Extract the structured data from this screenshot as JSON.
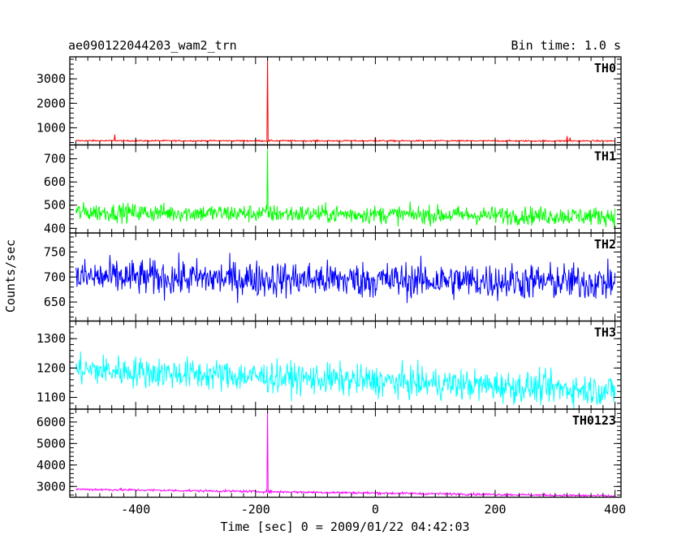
{
  "header": {
    "title": "ae090122044203_wam2_trn",
    "bin_time": "Bin time: 1.0 s"
  },
  "axes": {
    "ylabel": "Counts/sec",
    "xlabel": "Time [sec] 0 = 2009/01/22 04:42:03"
  },
  "chart_data": [
    {
      "type": "line",
      "name": "TH0",
      "color": "#ff0000",
      "xlim": [
        -510,
        410
      ],
      "ylim": [
        300,
        3900
      ],
      "yticks": [
        1000,
        2000,
        3000
      ],
      "baseline": 470,
      "noise": 22,
      "slope": -0.01,
      "spikes": [
        {
          "x": -180,
          "y": 3900
        },
        {
          "x": -435,
          "y": 720
        },
        {
          "x": 0,
          "y": 620
        },
        {
          "x": 320,
          "y": 660
        },
        {
          "x": 325,
          "y": 600
        }
      ]
    },
    {
      "type": "line",
      "name": "TH1",
      "color": "#00ff00",
      "xlim": [
        -510,
        410
      ],
      "ylim": [
        380,
        760
      ],
      "yticks": [
        400,
        500,
        600,
        700
      ],
      "baseline": 470,
      "noise": 28,
      "slope": -0.02,
      "spikes": [
        {
          "x": -180,
          "y": 740
        }
      ]
    },
    {
      "type": "line",
      "name": "TH2",
      "color": "#0000ff",
      "xlim": [
        -510,
        410
      ],
      "ylim": [
        612,
        788
      ],
      "yticks": [
        650,
        700,
        750
      ],
      "baseline": 700,
      "noise": 26,
      "slope": -0.012,
      "spikes": []
    },
    {
      "type": "line",
      "name": "TH3",
      "color": "#00ffff",
      "xlim": [
        -510,
        410
      ],
      "ylim": [
        1060,
        1360
      ],
      "yticks": [
        1100,
        1200,
        1300
      ],
      "baseline": 1195,
      "noise": 38,
      "slope": -0.08,
      "spikes": []
    },
    {
      "type": "line",
      "name": "TH0123",
      "color": "#ff00ff",
      "xlim": [
        -510,
        410
      ],
      "ylim": [
        2500,
        6600
      ],
      "yticks": [
        3000,
        4000,
        5000,
        6000
      ],
      "baseline": 2870,
      "noise": 40,
      "slope": -0.35,
      "spikes": [
        {
          "x": -180,
          "y": 6500
        }
      ]
    }
  ],
  "xticks": [
    -400,
    -200,
    0,
    200,
    400
  ],
  "data_xrange": [
    -500,
    400
  ],
  "data_step": 1
}
